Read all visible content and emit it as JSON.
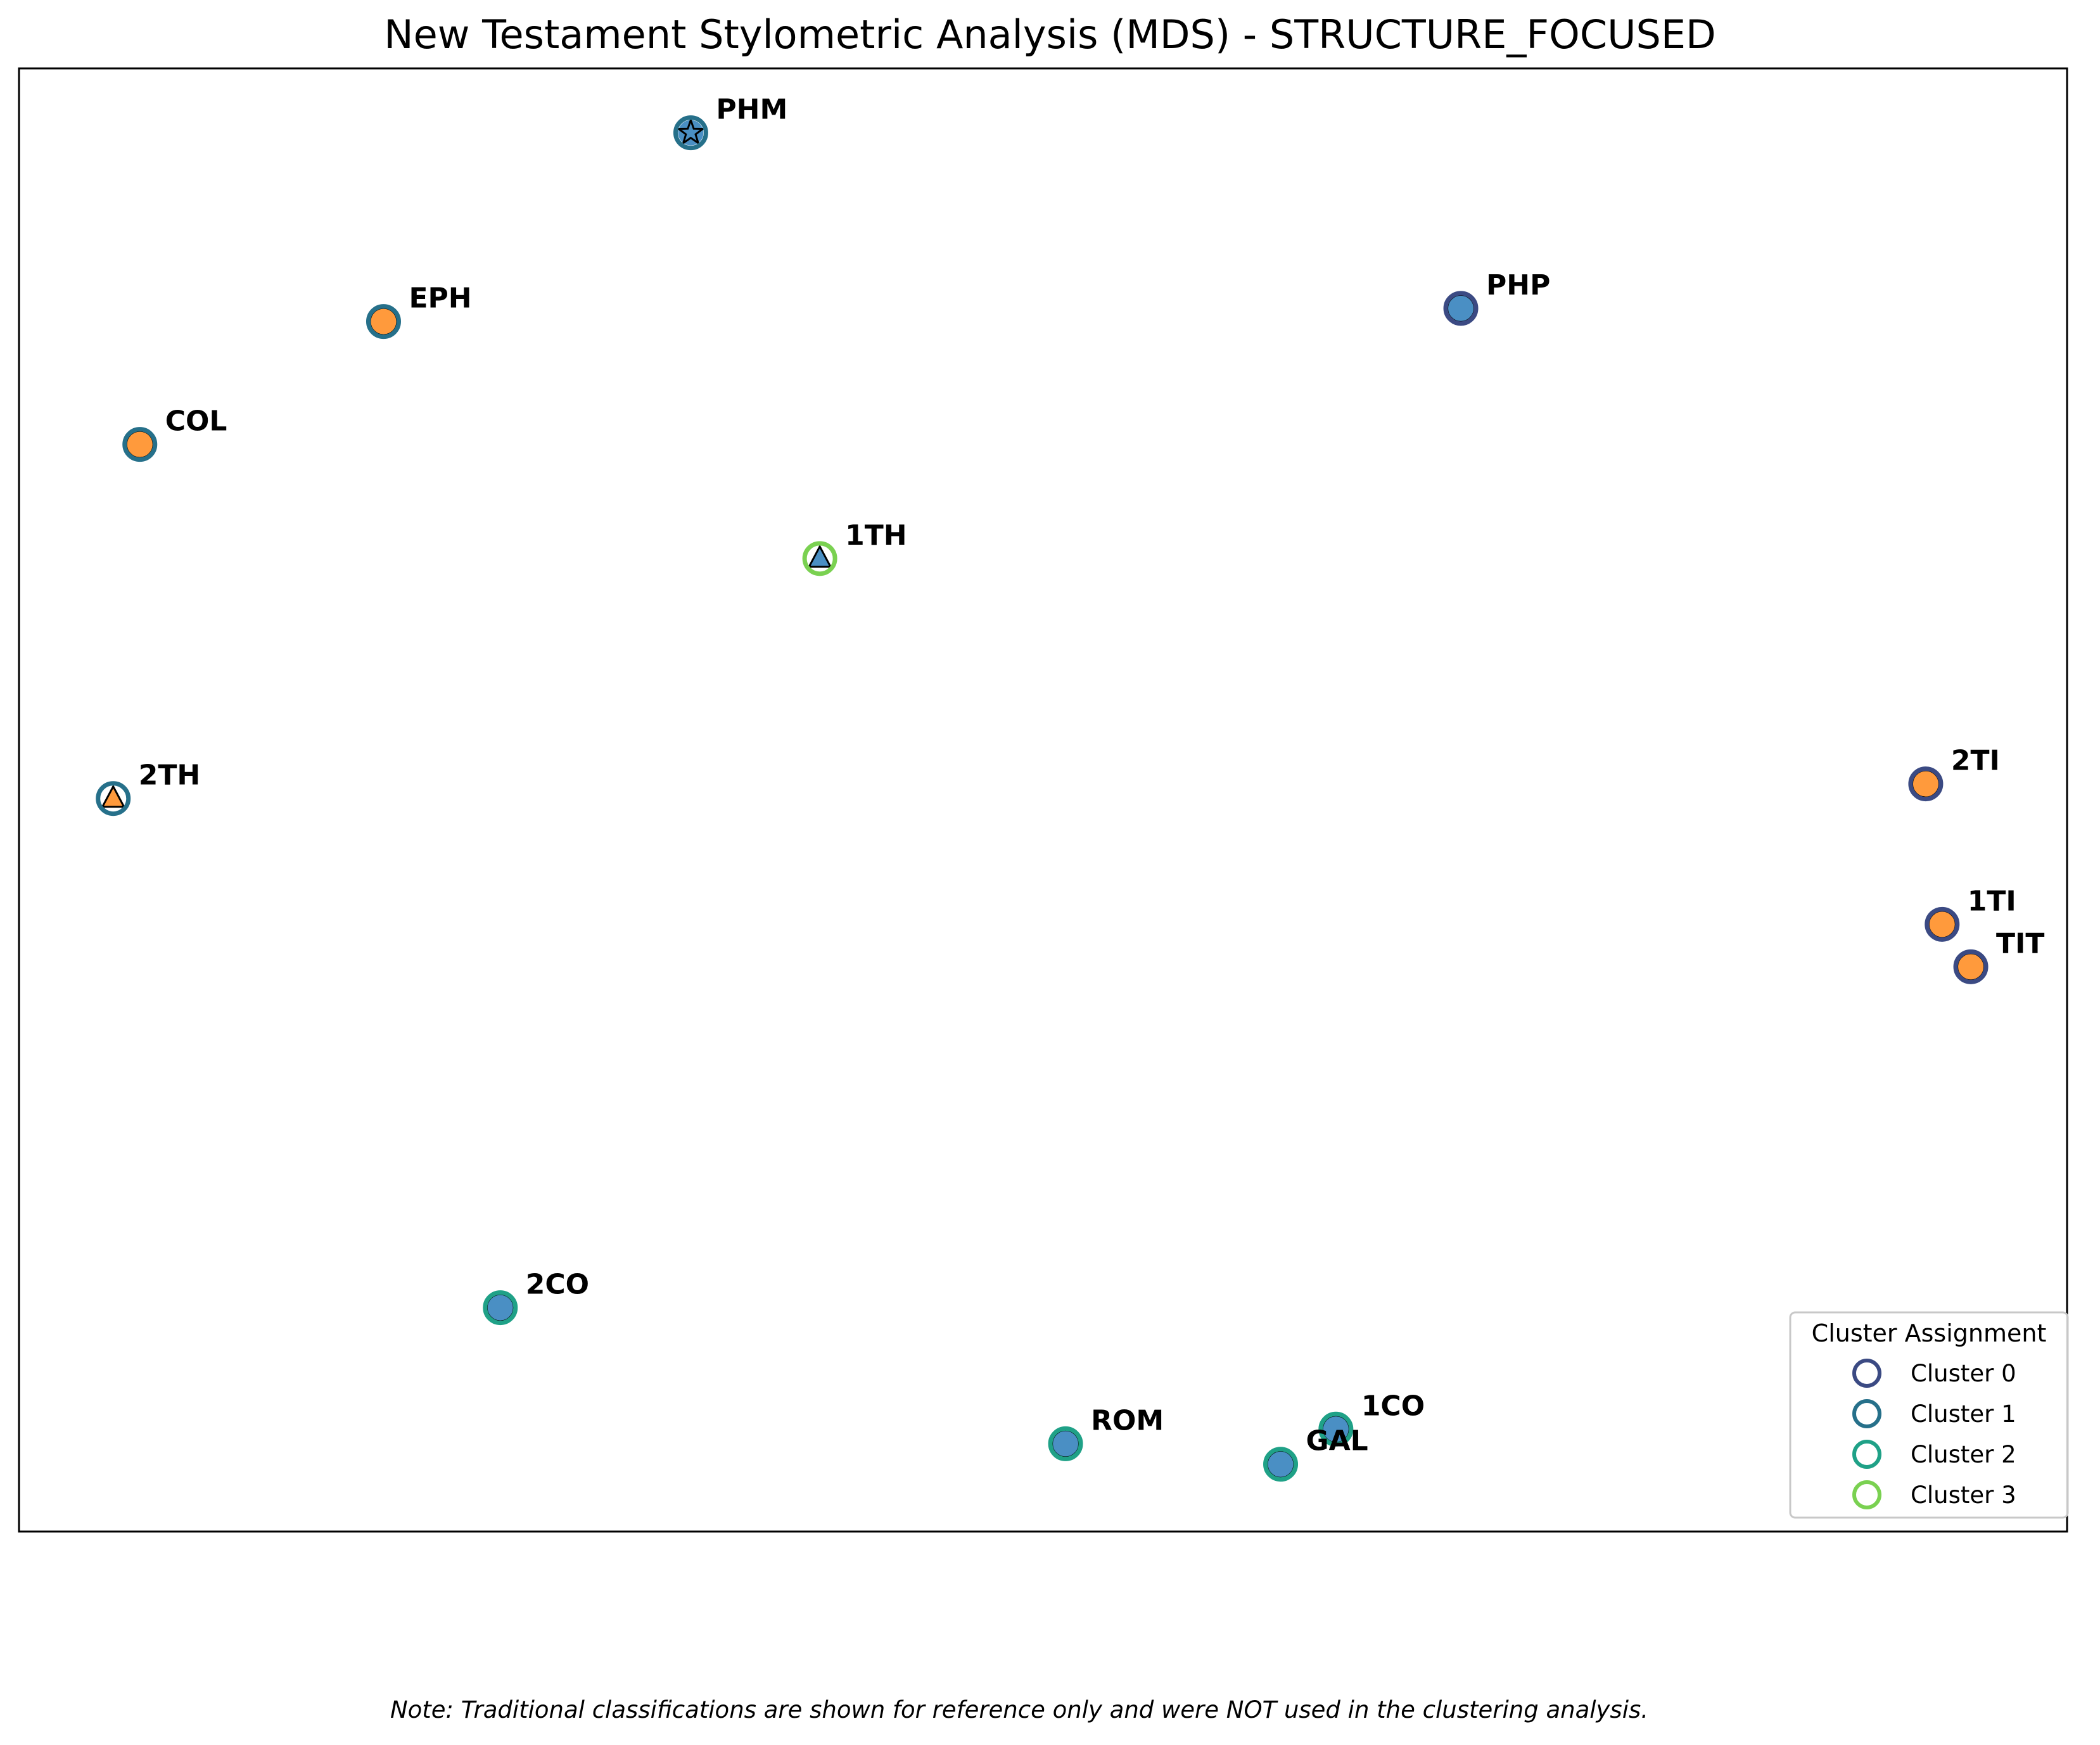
{
  "chart_data": {
    "type": "scatter",
    "title": "New Testament Stylometric Analysis (MDS) - STRUCTURE_FOCUSED",
    "xlabel": "",
    "ylabel": "",
    "axes_ticks": "none",
    "grid": false,
    "xlim": [
      0,
      100
    ],
    "ylim": [
      0,
      100
    ],
    "points": [
      {
        "label": "PHM",
        "x": 32.8,
        "y": 95.6,
        "cluster": 1,
        "traditional": "star"
      },
      {
        "label": "EPH",
        "x": 17.8,
        "y": 82.7,
        "cluster": 1,
        "traditional": "orange"
      },
      {
        "label": "PHP",
        "x": 70.4,
        "y": 83.6,
        "cluster": 0,
        "traditional": "blue"
      },
      {
        "label": "COL",
        "x": 5.9,
        "y": 74.3,
        "cluster": 1,
        "traditional": "orange"
      },
      {
        "label": "1TH",
        "x": 39.1,
        "y": 66.5,
        "cluster": 3,
        "traditional": "triangle-blue"
      },
      {
        "label": "2TH",
        "x": 4.6,
        "y": 50.1,
        "cluster": 1,
        "traditional": "triangle-orange"
      },
      {
        "label": "2TI",
        "x": 93.1,
        "y": 51.1,
        "cluster": 0,
        "traditional": "orange"
      },
      {
        "label": "1TI",
        "x": 93.9,
        "y": 41.5,
        "cluster": 0,
        "traditional": "orange"
      },
      {
        "label": "TIT",
        "x": 95.3,
        "y": 38.6,
        "cluster": 0,
        "traditional": "orange"
      },
      {
        "label": "2CO",
        "x": 23.5,
        "y": 15.3,
        "cluster": 2,
        "traditional": "blue"
      },
      {
        "label": "ROM",
        "x": 51.1,
        "y": 6.0,
        "cluster": 2,
        "traditional": "blue"
      },
      {
        "label": "1CO",
        "x": 64.3,
        "y": 7.0,
        "cluster": 2,
        "traditional": "blue"
      },
      {
        "label": "GAL",
        "x": 61.6,
        "y": 4.6,
        "cluster": 2,
        "traditional": "blue"
      }
    ],
    "legend": {
      "title": "Cluster Assignment",
      "placement": "bottom-right",
      "entries": [
        "Cluster 0",
        "Cluster 1",
        "Cluster 2",
        "Cluster 3"
      ]
    },
    "colors": {
      "cluster_0": "#3b4a83",
      "cluster_1": "#26708a",
      "cluster_2": "#1fa187",
      "cluster_3": "#7ad151",
      "fill_orange": "#ff9a3c",
      "fill_blue": "#4a8fc4"
    }
  },
  "footnote": "Note: Traditional classifications are shown for reference only and were NOT used in the clustering analysis."
}
